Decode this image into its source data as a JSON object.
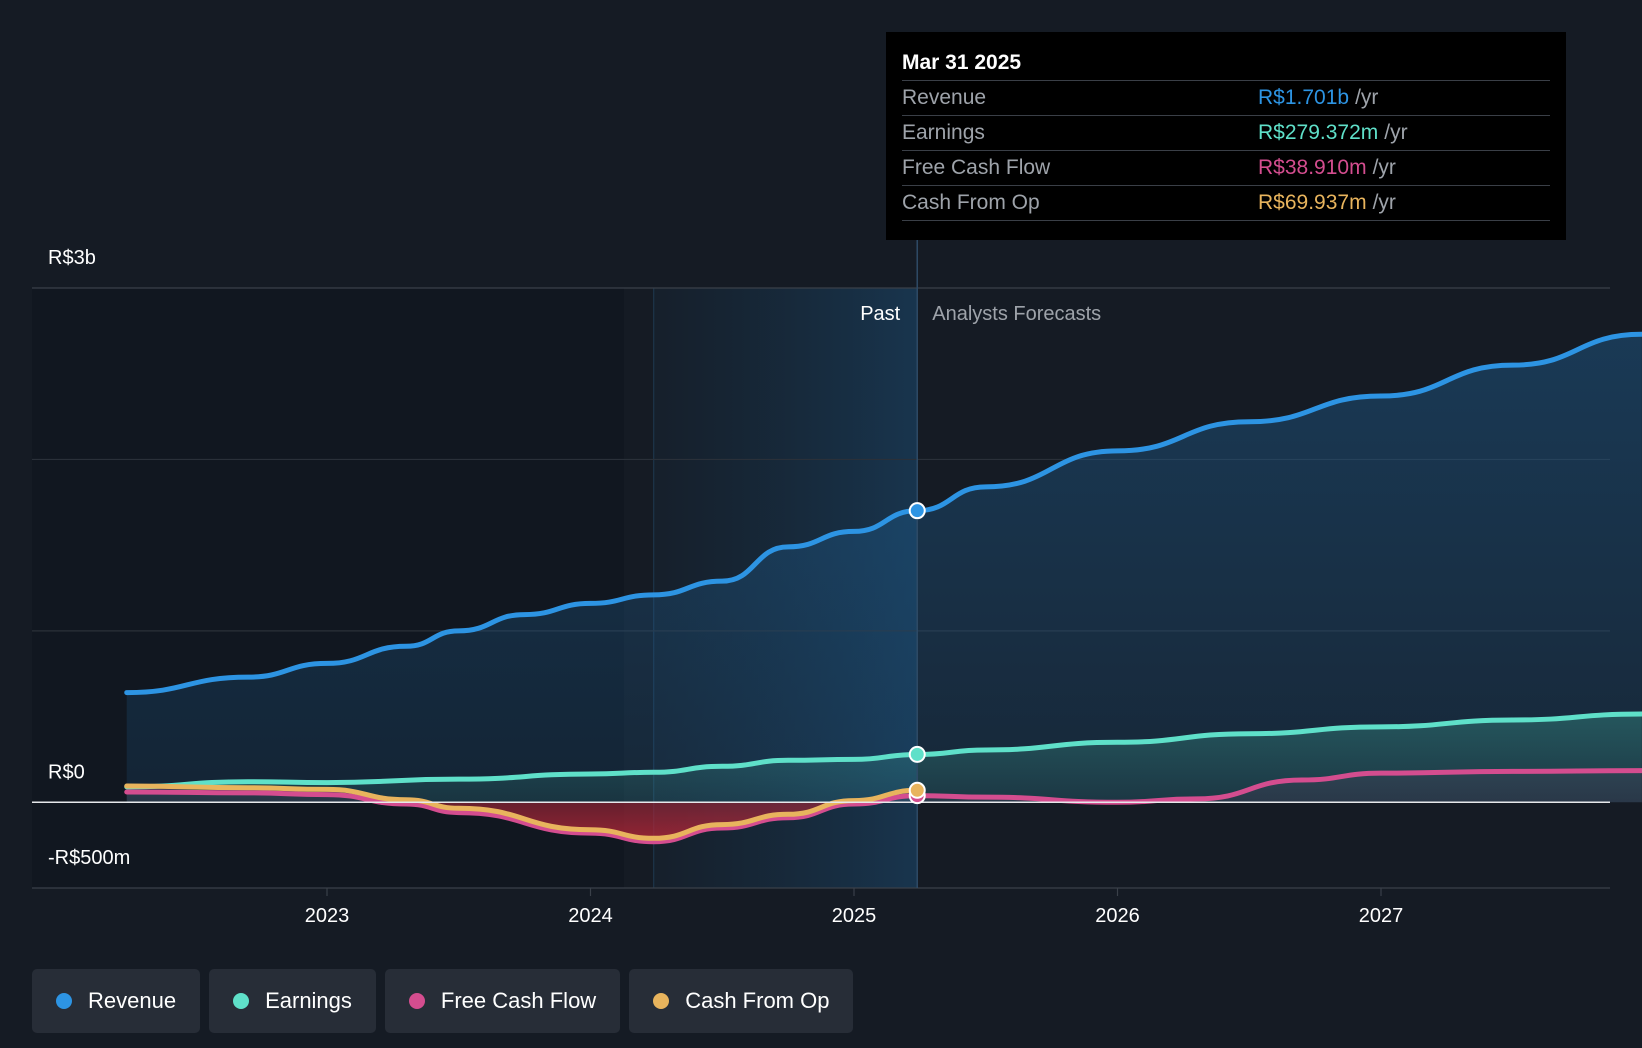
{
  "chart_data": {
    "type": "area",
    "y_axis": {
      "ticks": [
        "R$3b",
        "R$0",
        "-R$500m"
      ],
      "min": -500,
      "max": 3000,
      "unit": "R$m"
    },
    "x_axis": {
      "ticks": [
        "2023",
        "2024",
        "2025",
        "2026",
        "2027"
      ],
      "range": [
        2022.24,
        2027.99
      ]
    },
    "past_label": "Past",
    "forecast_label": "Analysts Forecasts",
    "divider_x": 2025.24,
    "highlight_start_x": 2024.24,
    "series": [
      {
        "name": "Revenue",
        "color": "#2d94e3",
        "x": [
          2022.24,
          2022.7,
          2023.0,
          2023.3,
          2023.5,
          2023.75,
          2024.0,
          2024.24,
          2024.5,
          2024.75,
          2025.0,
          2025.24,
          2025.5,
          2026.0,
          2026.5,
          2027.0,
          2027.5,
          2027.99
        ],
        "values": [
          640,
          730,
          810,
          910,
          1000,
          1095,
          1160,
          1210,
          1290,
          1490,
          1580,
          1701,
          1840,
          2050,
          2220,
          2370,
          2550,
          2730
        ]
      },
      {
        "name": "Earnings",
        "color": "#5fe0c9",
        "x": [
          2022.24,
          2022.7,
          2023.0,
          2023.5,
          2024.0,
          2024.24,
          2024.5,
          2024.75,
          2025.0,
          2025.24,
          2025.5,
          2026.0,
          2026.5,
          2027.0,
          2027.5,
          2027.99
        ],
        "values": [
          90,
          120,
          115,
          135,
          165,
          175,
          210,
          245,
          250,
          279,
          305,
          350,
          400,
          440,
          480,
          515
        ]
      },
      {
        "name": "Free Cash Flow",
        "color": "#d44d8f",
        "x": [
          2022.24,
          2022.7,
          2023.0,
          2023.3,
          2023.5,
          2024.0,
          2024.24,
          2024.5,
          2024.75,
          2025.0,
          2025.24,
          2025.5,
          2026.0,
          2026.3,
          2026.7,
          2027.0,
          2027.5,
          2027.99
        ],
        "values": [
          60,
          55,
          45,
          -10,
          -60,
          -180,
          -230,
          -150,
          -90,
          -10,
          39,
          30,
          0,
          20,
          130,
          170,
          180,
          185
        ]
      },
      {
        "name": "Cash From Op",
        "color": "#e8b45d",
        "x": [
          2022.24,
          2022.7,
          2023.0,
          2023.3,
          2023.5,
          2024.0,
          2024.24,
          2024.5,
          2024.75,
          2025.0,
          2025.24
        ],
        "values": [
          95,
          85,
          75,
          15,
          -35,
          -160,
          -210,
          -130,
          -70,
          10,
          70
        ]
      }
    ],
    "tooltip": {
      "date": "Mar 31 2025",
      "rows": [
        {
          "label": "Revenue",
          "value": "R$1.701b",
          "unit": "/yr",
          "color": "#2d94e3"
        },
        {
          "label": "Earnings",
          "value": "R$279.372m",
          "unit": "/yr",
          "color": "#5fe0c9"
        },
        {
          "label": "Free Cash Flow",
          "value": "R$38.910m",
          "unit": "/yr",
          "color": "#d44d8f"
        },
        {
          "label": "Cash From Op",
          "value": "R$69.937m",
          "unit": "/yr",
          "color": "#e8b45d"
        }
      ]
    },
    "legend": [
      {
        "label": "Revenue",
        "color": "#2d94e3"
      },
      {
        "label": "Earnings",
        "color": "#5fe0c9"
      },
      {
        "label": "Free Cash Flow",
        "color": "#d44d8f"
      },
      {
        "label": "Cash From Op",
        "color": "#e8b45d"
      }
    ]
  }
}
